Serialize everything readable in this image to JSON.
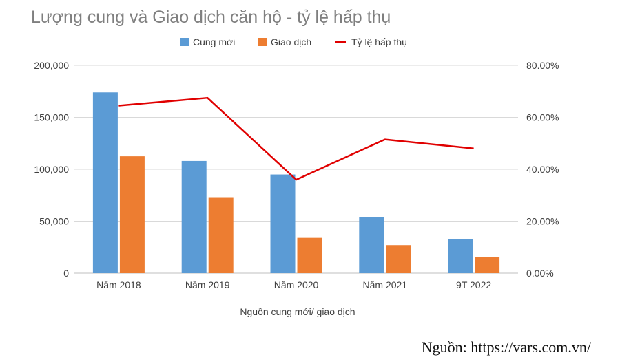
{
  "chart_data": {
    "type": "bar",
    "title": "Lượng cung và Giao dịch căn hộ - tỷ lệ hấp thụ",
    "xlabel": "Nguồn cung mới/ giao dịch",
    "categories": [
      "Năm 2018",
      "Năm 2019",
      "Năm 2020",
      "Năm 2021",
      "9T 2022"
    ],
    "series": [
      {
        "name": "Cung mới",
        "type": "bar",
        "axis": "left",
        "color": "#5b9bd5",
        "values": [
          174000,
          108000,
          95000,
          54000,
          32500
        ]
      },
      {
        "name": "Giao dịch",
        "type": "bar",
        "axis": "left",
        "color": "#ed7d31",
        "values": [
          112500,
          72500,
          34000,
          27000,
          15500
        ]
      },
      {
        "name": "Tỷ lệ hấp thụ",
        "type": "line",
        "axis": "right",
        "color": "#e00000",
        "values": [
          0.645,
          0.675,
          0.36,
          0.515,
          0.48
        ]
      }
    ],
    "ylim_left": [
      0,
      200000
    ],
    "yticks_left": [
      "0",
      "50,000",
      "100,000",
      "150,000",
      "200,000"
    ],
    "ylim_right": [
      0,
      0.8
    ],
    "yticks_right": [
      "0.00%",
      "20.00%",
      "40.00%",
      "60.00%",
      "80.00%"
    ],
    "grid": true,
    "legend": "top-center"
  },
  "source_note": "Nguồn: https://vars.com.vn/"
}
